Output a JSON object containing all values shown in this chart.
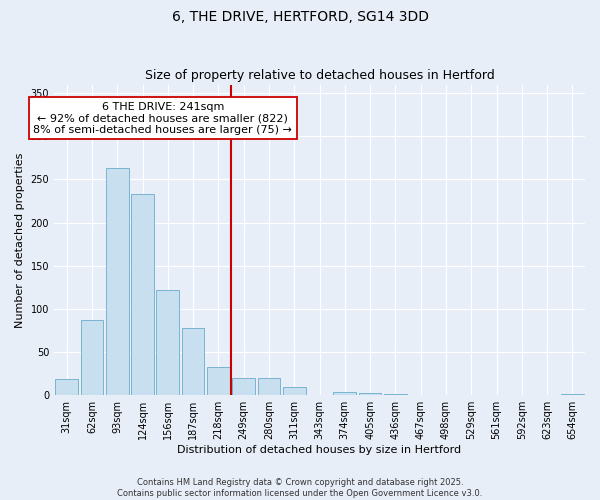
{
  "title": "6, THE DRIVE, HERTFORD, SG14 3DD",
  "subtitle": "Size of property relative to detached houses in Hertford",
  "xlabel": "Distribution of detached houses by size in Hertford",
  "ylabel": "Number of detached properties",
  "bar_labels": [
    "31sqm",
    "62sqm",
    "93sqm",
    "124sqm",
    "156sqm",
    "187sqm",
    "218sqm",
    "249sqm",
    "280sqm",
    "311sqm",
    "343sqm",
    "374sqm",
    "405sqm",
    "436sqm",
    "467sqm",
    "498sqm",
    "529sqm",
    "561sqm",
    "592sqm",
    "623sqm",
    "654sqm"
  ],
  "bar_values": [
    19,
    87,
    263,
    233,
    122,
    78,
    33,
    20,
    20,
    9,
    0,
    4,
    3,
    1,
    0,
    0,
    0,
    0,
    0,
    0,
    1
  ],
  "bar_color": "#c8dff0",
  "bar_edgecolor": "#7ab4d0",
  "vline_index": 7,
  "vline_color": "#cc0000",
  "annotation_title": "6 THE DRIVE: 241sqm",
  "annotation_line1": "← 92% of detached houses are smaller (822)",
  "annotation_line2": "8% of semi-detached houses are larger (75) →",
  "annotation_box_facecolor": "#ffffff",
  "annotation_box_edgecolor": "#cc0000",
  "ylim": [
    0,
    360
  ],
  "yticks": [
    0,
    50,
    100,
    150,
    200,
    250,
    300,
    350
  ],
  "footer1": "Contains HM Land Registry data © Crown copyright and database right 2025.",
  "footer2": "Contains public sector information licensed under the Open Government Licence v3.0.",
  "background_color": "#e8eef8",
  "grid_color": "#ffffff",
  "title_fontsize": 10,
  "subtitle_fontsize": 9,
  "tick_fontsize": 7,
  "axis_label_fontsize": 8,
  "annotation_fontsize": 8,
  "footer_fontsize": 6
}
